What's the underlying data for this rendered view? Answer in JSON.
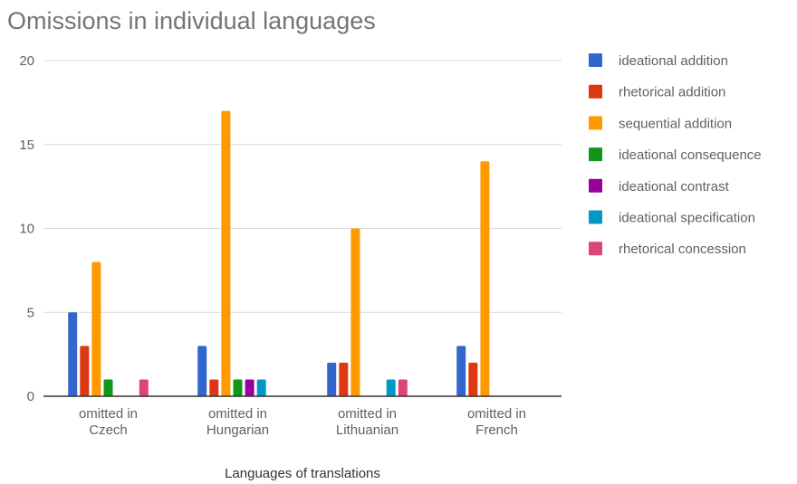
{
  "chart_data": {
    "type": "bar",
    "title": "Omissions in individual languages",
    "xlabel": "Languages of translations",
    "ylabel": "",
    "ylim": [
      0,
      20
    ],
    "yticks": [
      0,
      5,
      10,
      15,
      20
    ],
    "grid": true,
    "legend_position": "right",
    "categories": [
      [
        "omitted in",
        "Czech"
      ],
      [
        "omitted in",
        "Hungarian"
      ],
      [
        "omitted in",
        "Lithuanian"
      ],
      [
        "omitted in",
        "French"
      ]
    ],
    "series": [
      {
        "name": "ideational addition",
        "color": "#3366cc",
        "values": [
          5,
          3,
          2,
          3
        ]
      },
      {
        "name": "rhetorical addition",
        "color": "#dc3912",
        "values": [
          3,
          1,
          2,
          2
        ]
      },
      {
        "name": "sequential addition",
        "color": "#ff9900",
        "values": [
          8,
          17,
          10,
          14
        ]
      },
      {
        "name": "ideational consequence",
        "color": "#109618",
        "values": [
          1,
          1,
          0,
          0
        ]
      },
      {
        "name": "ideational contrast",
        "color": "#990099",
        "values": [
          0,
          1,
          0,
          0
        ]
      },
      {
        "name": "ideational specification",
        "color": "#0099c6",
        "values": [
          0,
          1,
          1,
          0
        ]
      },
      {
        "name": "rhetorical concession",
        "color": "#dd4477",
        "values": [
          1,
          0,
          1,
          0
        ]
      }
    ]
  }
}
